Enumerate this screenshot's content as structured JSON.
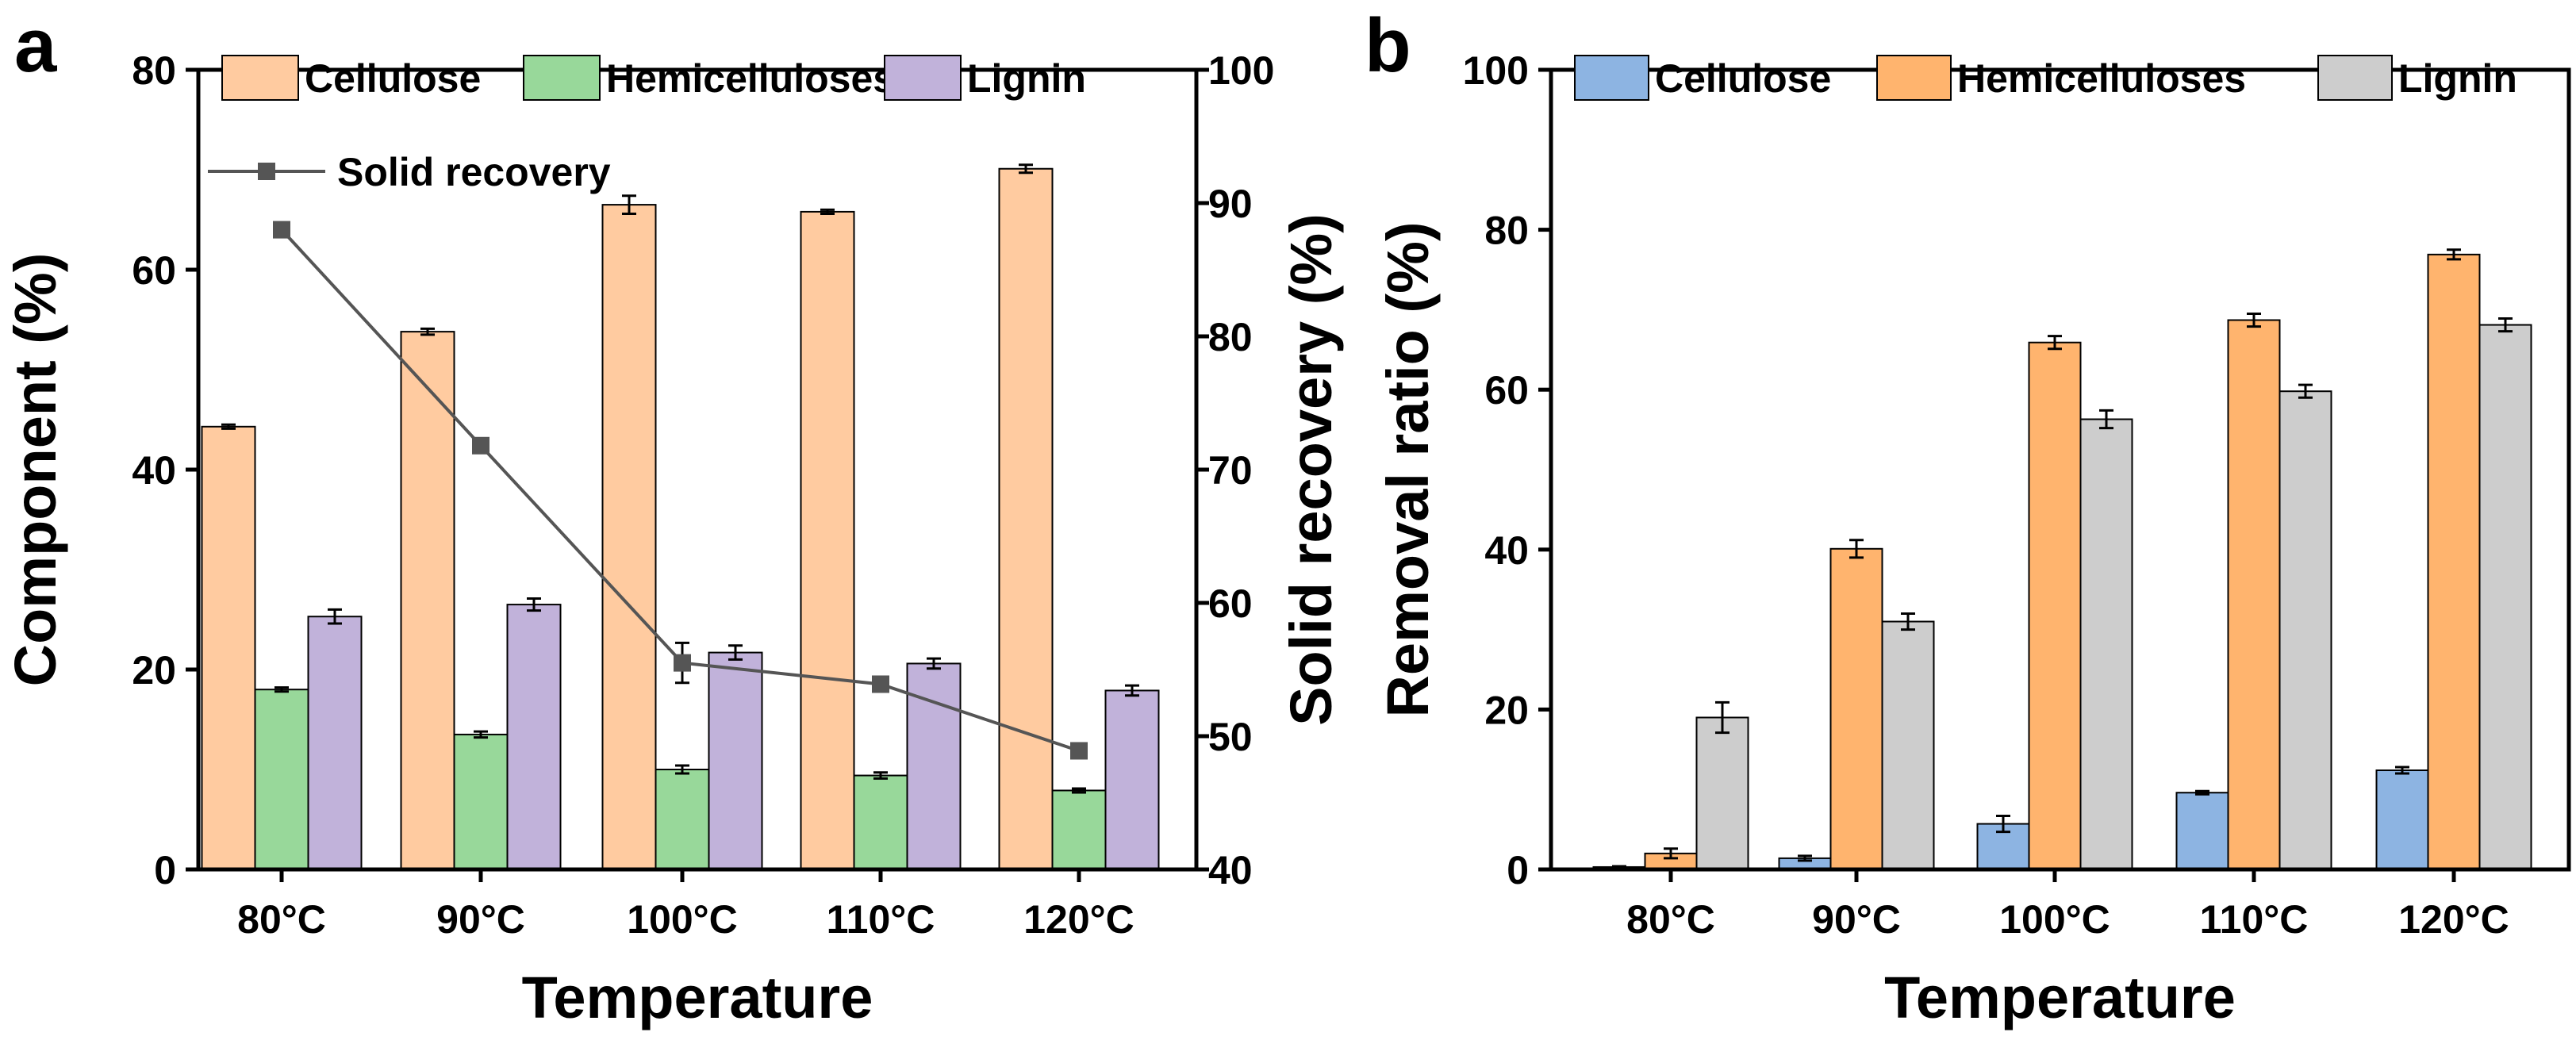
{
  "figure": {
    "panel_a_label": "a",
    "panel_b_label": "b"
  },
  "chart_data": [
    {
      "panel": "a",
      "type": "bar",
      "title": "",
      "xlabel": "Temperature",
      "ylabel": "Component (%)",
      "y2label": "Solid recovery (%)",
      "categories": [
        "80°C",
        "90°C",
        "100°C",
        "110°C",
        "120°C"
      ],
      "ylim": [
        0,
        80
      ],
      "yticks": [
        "0",
        "20",
        "40",
        "60",
        "80"
      ],
      "y2lim": [
        40,
        100
      ],
      "y2ticks": [
        "40",
        "50",
        "60",
        "70",
        "80",
        "90",
        "100"
      ],
      "series": [
        {
          "name": "Cellulose",
          "color": "#FFCBA0",
          "values": [
            44.3,
            53.8,
            66.5,
            65.8,
            70.1
          ],
          "errors": [
            0.2,
            0.3,
            0.9,
            0.2,
            0.4
          ]
        },
        {
          "name": "Hemicelluloses",
          "color": "#98D89A",
          "values": [
            18.0,
            13.5,
            10.0,
            9.4,
            7.9
          ],
          "errors": [
            0.2,
            0.3,
            0.4,
            0.3,
            0.2
          ]
        },
        {
          "name": "Lignin",
          "color": "#C1B2DA",
          "values": [
            25.3,
            26.5,
            21.7,
            20.6,
            17.9
          ],
          "errors": [
            0.7,
            0.6,
            0.7,
            0.5,
            0.5
          ]
        }
      ],
      "line_series": {
        "name": "Solid recovery",
        "color": "#555555",
        "axis": "right",
        "values": [
          88.0,
          71.8,
          55.5,
          53.9,
          48.9
        ],
        "errors": [
          0.0,
          0.0,
          1.5,
          0.0,
          0.0
        ]
      },
      "legend": "top"
    },
    {
      "panel": "b",
      "type": "bar",
      "title": "",
      "xlabel": "Temperature",
      "ylabel": "Removal ratio (%)",
      "categories": [
        "80°C",
        "90°C",
        "100°C",
        "110°C",
        "120°C"
      ],
      "ylim": [
        0,
        100
      ],
      "yticks": [
        "0",
        "20",
        "40",
        "60",
        "80",
        "100"
      ],
      "series": [
        {
          "name": "Cellulose",
          "color": "#8DB4E2",
          "values": [
            0.3,
            1.4,
            5.7,
            9.6,
            12.4
          ],
          "errors": [
            0.1,
            0.3,
            1.0,
            0.2,
            0.4
          ]
        },
        {
          "name": "Hemicelluloses",
          "color": "#FFB46E",
          "values": [
            2.0,
            40.1,
            65.9,
            68.7,
            76.9
          ],
          "errors": [
            0.6,
            1.1,
            0.8,
            0.8,
            0.6
          ]
        },
        {
          "name": "Lignin",
          "color": "#CDCDCD",
          "values": [
            19.0,
            31.0,
            56.3,
            59.8,
            68.1
          ],
          "errors": [
            1.9,
            1.0,
            1.1,
            0.8,
            0.8
          ]
        }
      ],
      "legend": "top"
    }
  ]
}
